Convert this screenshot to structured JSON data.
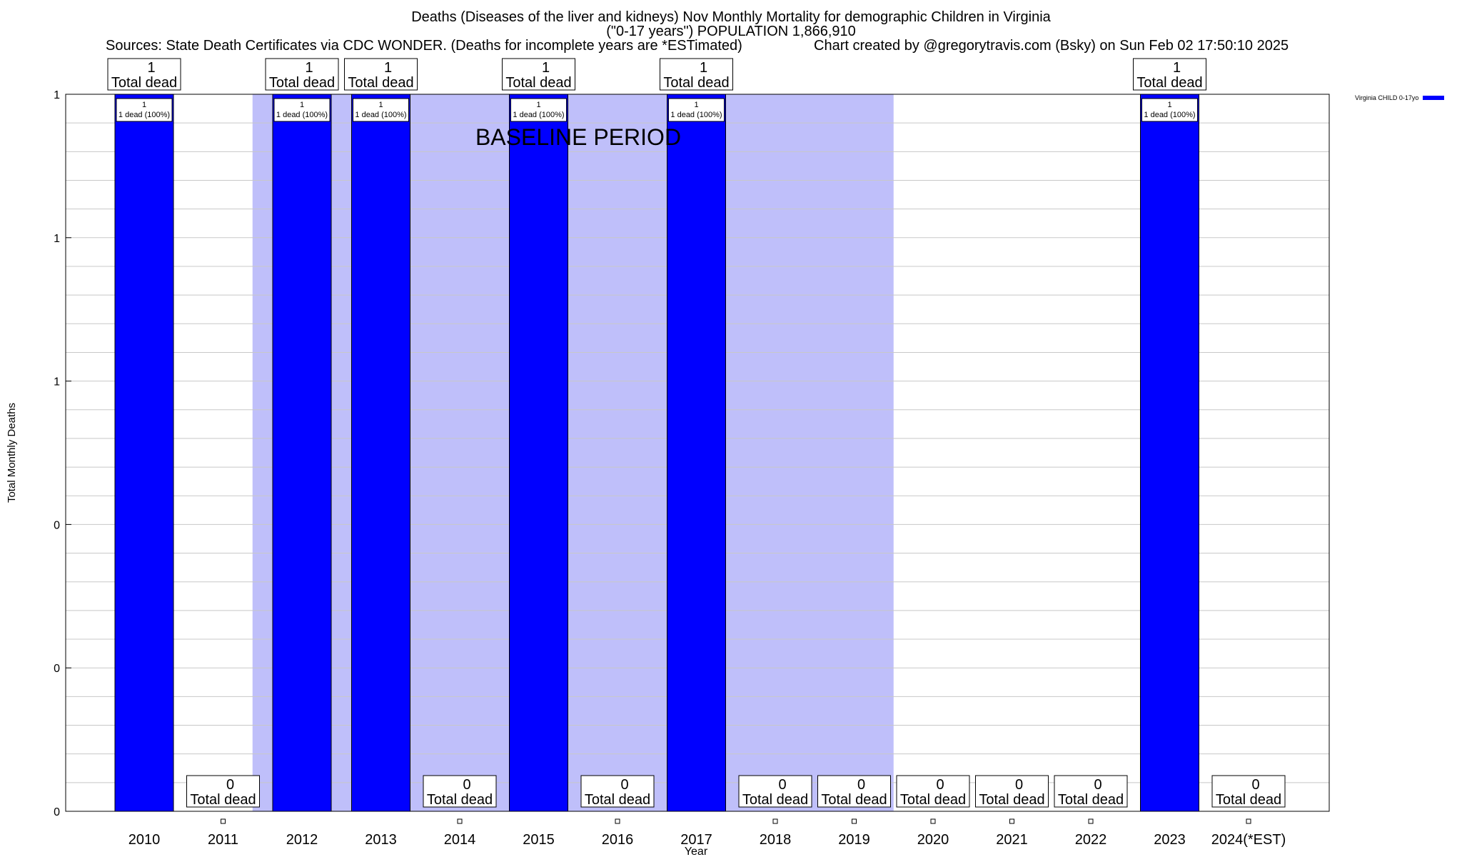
{
  "header": {
    "title_line1": "Deaths (Diseases of the liver and kidneys) Nov Monthly Mortality for demographic Children in Virginia",
    "title_line2": "(\"0-17 years\") POPULATION 1,866,910",
    "sources": "Sources: State Death Certificates via CDC WONDER. (Deaths for incomplete years are *ESTimated)",
    "credit": "Chart created by @gregorytravis.com (Bsky) on Sun Feb 02 17:50:10 2025"
  },
  "legend": {
    "label": "Virginia CHILD 0-17yo"
  },
  "chart_data": {
    "type": "bar",
    "xlabel": "Year",
    "ylabel": "Total Monthly Deaths",
    "ylim": [
      0,
      1
    ],
    "y_tick_labels": [
      "0",
      "0",
      "0",
      "1",
      "1",
      "1"
    ],
    "categories": [
      "2010",
      "2011",
      "2012",
      "2013",
      "2014",
      "2015",
      "2016",
      "2017",
      "2018",
      "2019",
      "2020",
      "2021",
      "2022",
      "2023",
      "2024(*EST)"
    ],
    "series": [
      {
        "name": "Virginia CHILD 0-17yo",
        "color": "#0000ff",
        "values": [
          1,
          0,
          1,
          1,
          0,
          1,
          0,
          1,
          0,
          0,
          0,
          0,
          0,
          1,
          0
        ]
      }
    ],
    "total_label_suffix": "Total dead",
    "bar_label_suffix": "dead (100%)",
    "baseline": {
      "label": "BASELINE PERIOD",
      "start": "2012",
      "end": "2019",
      "color": "#bfbffa"
    },
    "grid": true
  }
}
